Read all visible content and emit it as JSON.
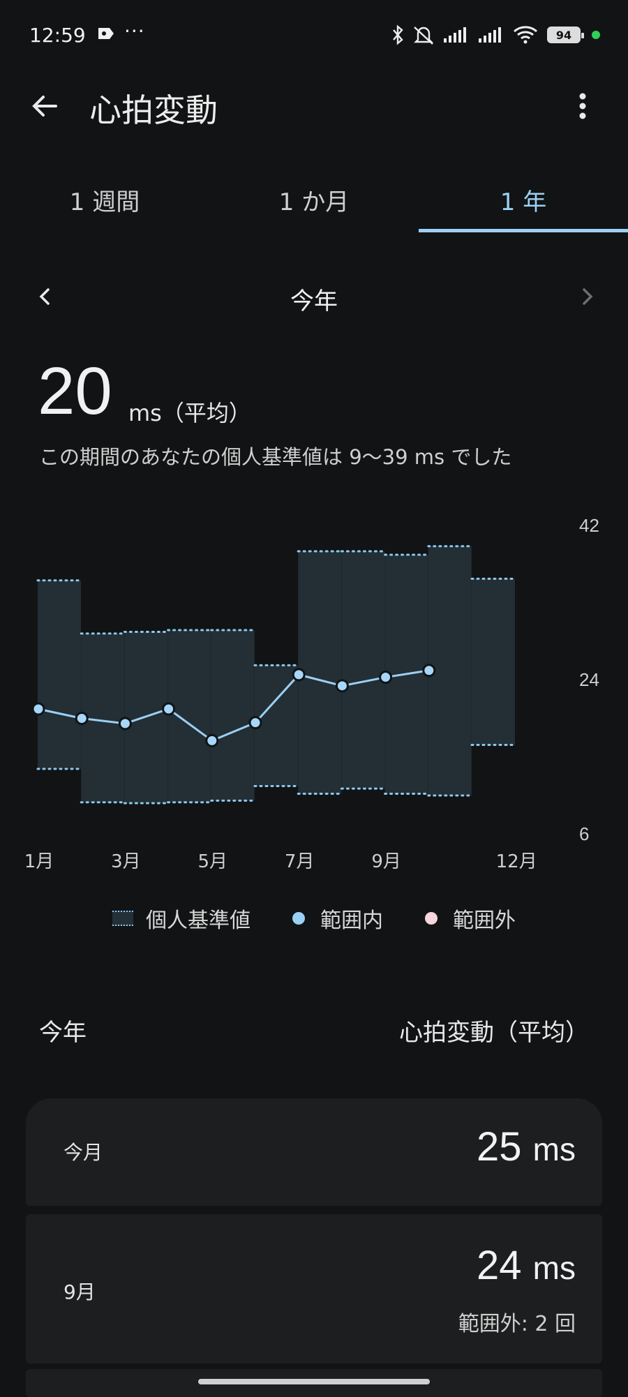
{
  "status_bar": {
    "time": "12:59",
    "more": "···",
    "battery": "94",
    "icons": [
      "app-icon",
      "bluetooth-icon",
      "mute-icon",
      "signal-icon",
      "signal-icon",
      "wifi-icon",
      "battery-icon"
    ]
  },
  "app_bar": {
    "title": "心拍変動"
  },
  "tabs": [
    {
      "label": "1 週間",
      "active": false
    },
    {
      "label": "1 か月",
      "active": false
    },
    {
      "label": "1 年",
      "active": true
    }
  ],
  "period": {
    "label": "今年"
  },
  "summary": {
    "value": "20",
    "unit": "ms（平均）",
    "description": "この期間のあなたの個人基準値は 9〜39 ms でした"
  },
  "chart_data": {
    "type": "line",
    "x_tick_labels": [
      "1月",
      "3月",
      "5月",
      "7月",
      "9月",
      "12月"
    ],
    "y_tick_labels": [
      "42",
      "24",
      "6"
    ],
    "ylim": [
      6,
      42
    ],
    "months": [
      1,
      2,
      3,
      4,
      5,
      6,
      7,
      8,
      9,
      10,
      11,
      12
    ],
    "baseline_band": {
      "name": "個人基準値",
      "low": [
        13.5,
        9.6,
        9.5,
        9.6,
        9.8,
        11.5,
        10.6,
        11.2,
        10.6,
        10.4,
        16.3,
        null
      ],
      "high": [
        35.5,
        29.3,
        29.5,
        29.7,
        29.7,
        25.6,
        38.9,
        38.9,
        38.5,
        39.5,
        35.7,
        null
      ]
    },
    "series": [
      {
        "name": "範囲内",
        "values": [
          20.5,
          19.4,
          18.8,
          20.5,
          16.8,
          18.9,
          24.5,
          23.2,
          24.2,
          25.0,
          null,
          null
        ]
      }
    ],
    "colors": {
      "band_fill": "#232e35",
      "band_border": "#8cc8ee",
      "line": "#9bd0f5",
      "point": "#a7d6f8",
      "out_of_range": "#f7d5dc"
    }
  },
  "legend": [
    {
      "label": "個人基準値",
      "kind": "band"
    },
    {
      "label": "範囲内",
      "kind": "dot",
      "color": "#9bd0f5"
    },
    {
      "label": "範囲外",
      "kind": "dot",
      "color": "#f7d5dc"
    }
  ],
  "list": {
    "left_header": "今年",
    "right_header": "心拍変動（平均）",
    "items": [
      {
        "label": "今月",
        "value": "25",
        "unit": "ms",
        "note": ""
      },
      {
        "label": "9月",
        "value": "24",
        "unit": "ms",
        "note": "範囲外: 2 回"
      }
    ]
  }
}
